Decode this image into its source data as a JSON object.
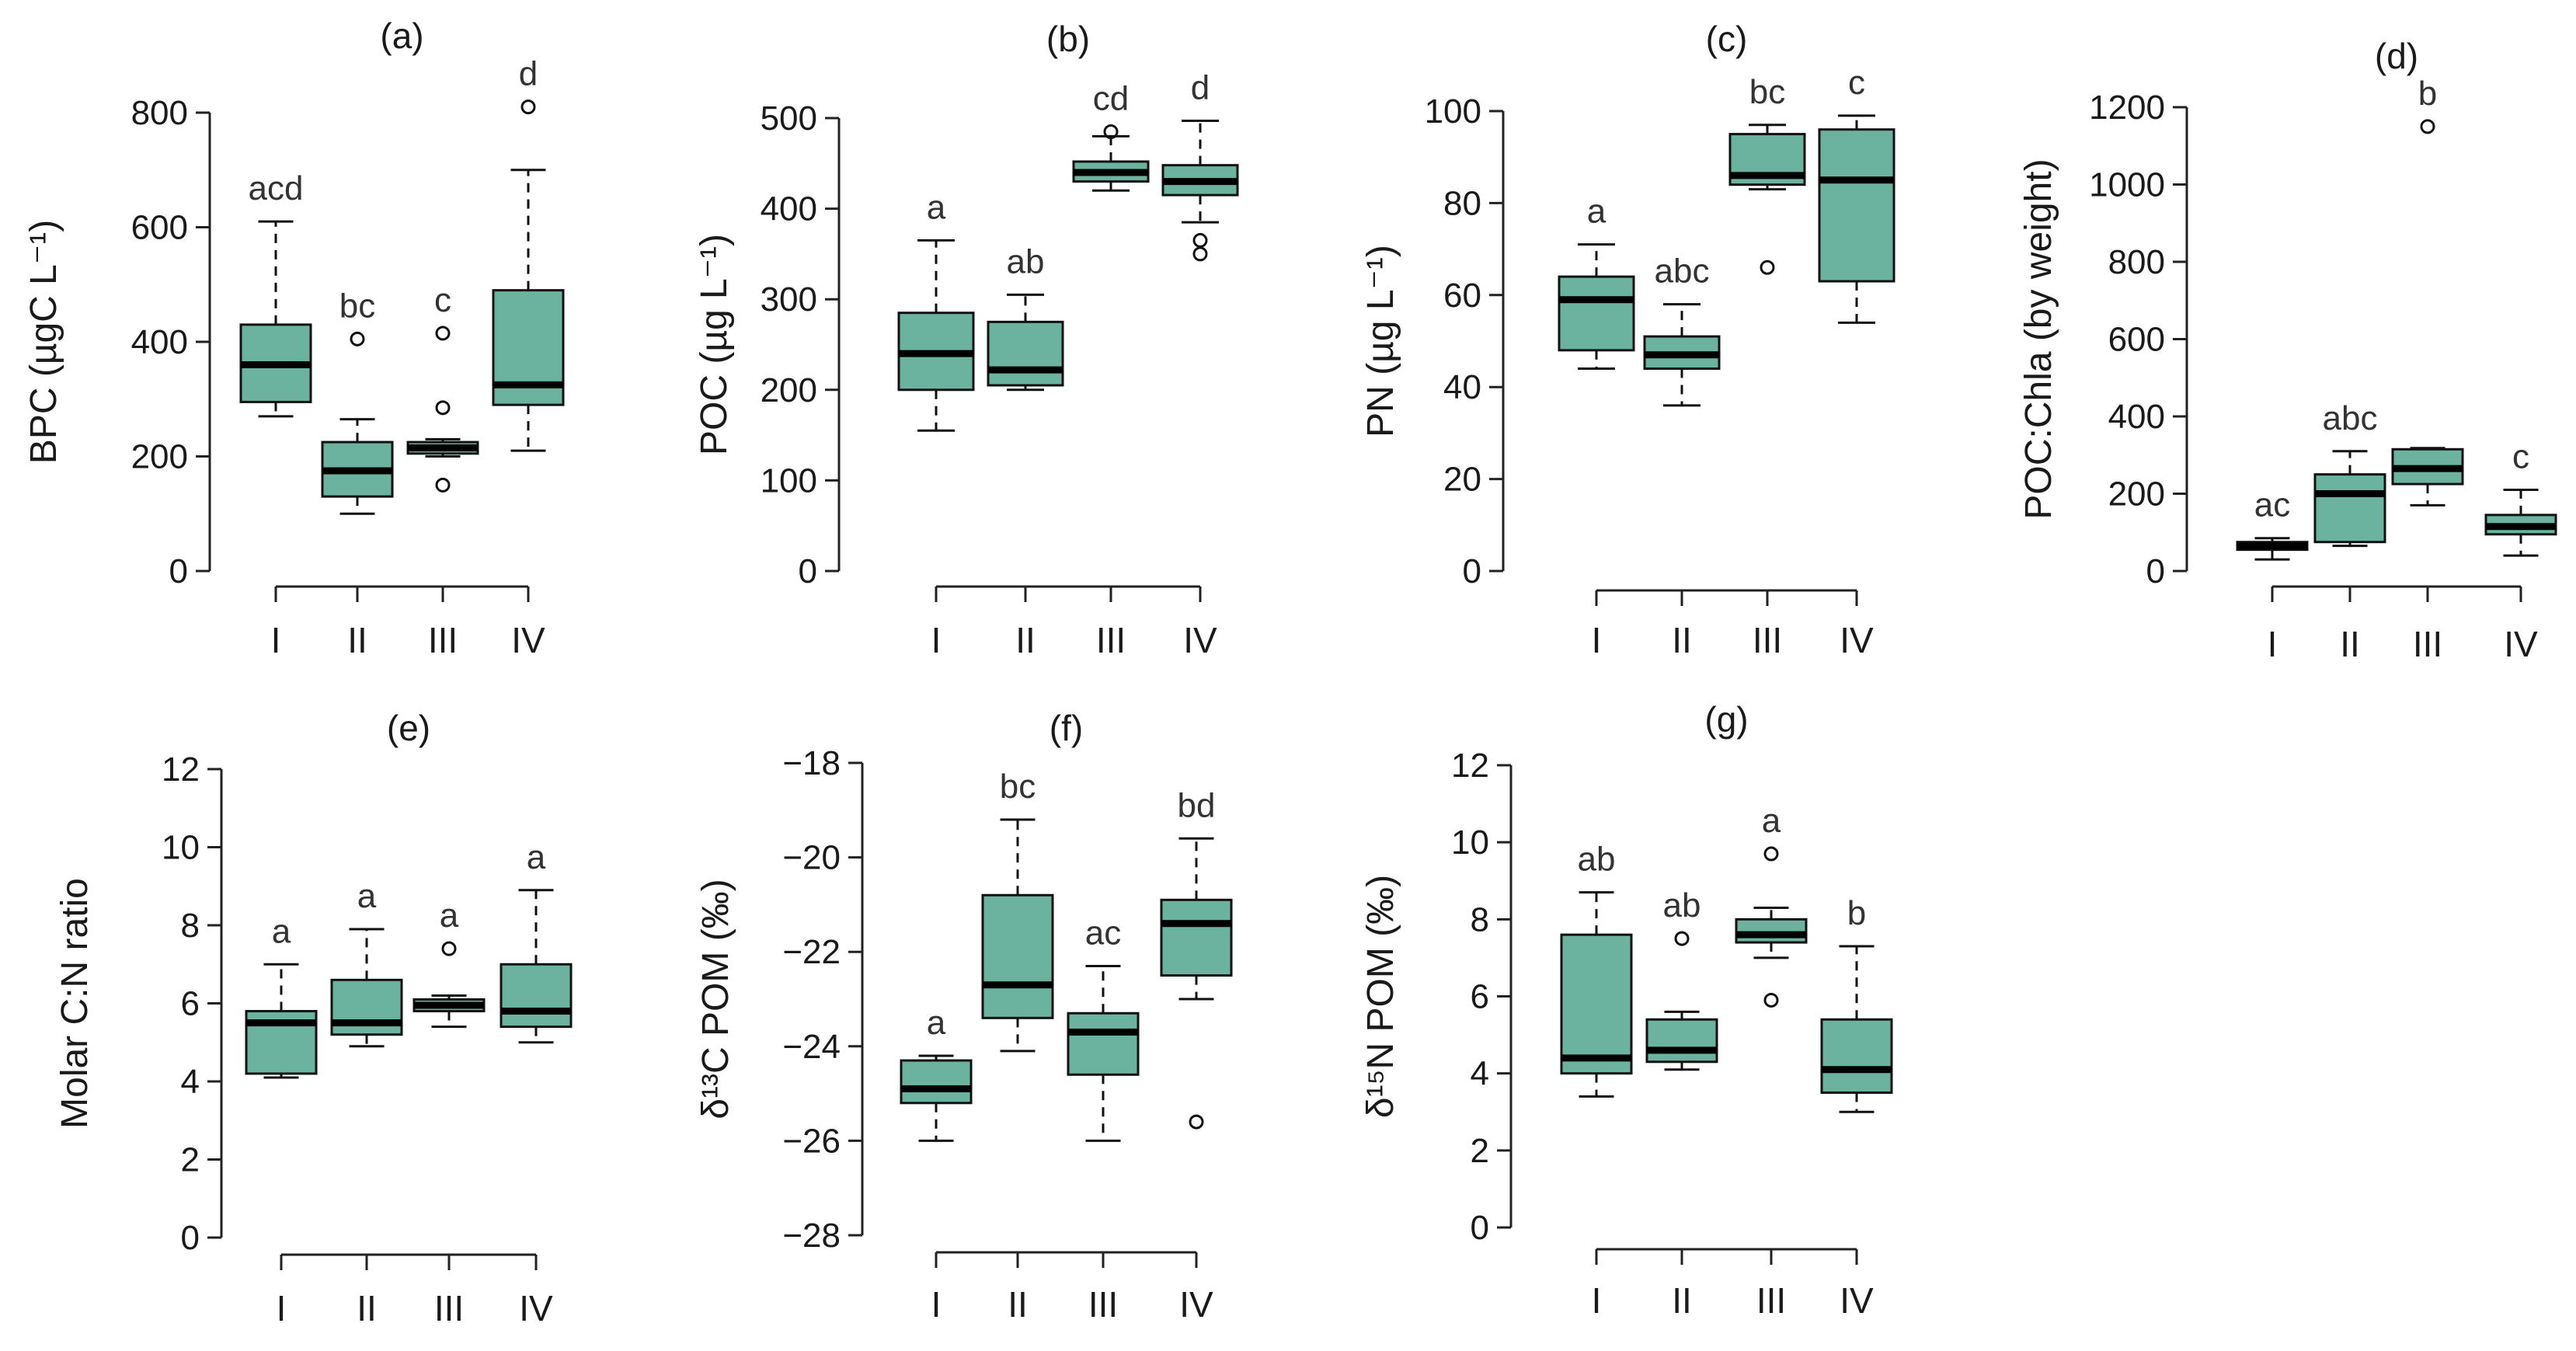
{
  "colors": {
    "box_fill": "#6bb39f",
    "line": "#111111",
    "text": "#1a1a1a"
  },
  "chart_data": [
    {
      "id": "a",
      "type": "boxplot",
      "title": "(a)",
      "ylabel": "BPC (µgC L⁻¹)",
      "ylim": [
        0,
        800
      ],
      "yticks": [
        0,
        200,
        400,
        600,
        800
      ],
      "categories": [
        "I",
        "II",
        "III",
        "IV"
      ],
      "boxes": [
        {
          "min": 270,
          "q1": 295,
          "median": 360,
          "q3": 430,
          "max": 610,
          "outliers": [],
          "letter": "acd"
        },
        {
          "min": 100,
          "q1": 130,
          "median": 175,
          "q3": 225,
          "max": 265,
          "outliers": [
            405
          ],
          "letter": "bc"
        },
        {
          "min": 200,
          "q1": 205,
          "median": 215,
          "q3": 225,
          "max": 230,
          "outliers": [
            150,
            285,
            415
          ],
          "letter": "c"
        },
        {
          "min": 210,
          "q1": 290,
          "median": 325,
          "q3": 490,
          "max": 700,
          "outliers": [
            810
          ],
          "letter": "d"
        }
      ]
    },
    {
      "id": "b",
      "type": "boxplot",
      "title": "(b)",
      "ylabel": "POC  (µg L⁻¹)",
      "ylim": [
        0,
        500
      ],
      "yticks": [
        0,
        100,
        200,
        300,
        400,
        500
      ],
      "categories": [
        "I",
        "II",
        "III",
        "IV"
      ],
      "boxes": [
        {
          "min": 155,
          "q1": 200,
          "median": 240,
          "q3": 285,
          "max": 365,
          "outliers": [],
          "letter": "a"
        },
        {
          "min": 200,
          "q1": 205,
          "median": 222,
          "q3": 275,
          "max": 305,
          "outliers": [],
          "letter": "ab"
        },
        {
          "min": 420,
          "q1": 430,
          "median": 440,
          "q3": 452,
          "max": 480,
          "outliers": [
            485
          ],
          "letter": "cd"
        },
        {
          "min": 385,
          "q1": 415,
          "median": 430,
          "q3": 448,
          "max": 497,
          "outliers": [
            365,
            350
          ],
          "letter": "d"
        }
      ]
    },
    {
      "id": "c",
      "type": "boxplot",
      "title": "(c)",
      "ylabel": "PN (µg L⁻¹)",
      "ylim": [
        0,
        100
      ],
      "yticks": [
        0,
        20,
        40,
        60,
        80,
        100
      ],
      "categories": [
        "I",
        "II",
        "III",
        "IV"
      ],
      "boxes": [
        {
          "min": 44,
          "q1": 48,
          "median": 59,
          "q3": 64,
          "max": 71,
          "outliers": [],
          "letter": "a"
        },
        {
          "min": 36,
          "q1": 44,
          "median": 47,
          "q3": 51,
          "max": 58,
          "outliers": [],
          "letter": "abc"
        },
        {
          "min": 83,
          "q1": 84,
          "median": 86,
          "q3": 95,
          "max": 97,
          "outliers": [
            66
          ],
          "letter": "bc"
        },
        {
          "min": 54,
          "q1": 63,
          "median": 85,
          "q3": 96,
          "max": 99,
          "outliers": [],
          "letter": "c"
        }
      ]
    },
    {
      "id": "d",
      "type": "boxplot",
      "title": "(d)",
      "ylabel": "POC:Chla (by weight)",
      "ylim": [
        0,
        1200
      ],
      "yticks": [
        0,
        200,
        400,
        600,
        800,
        1000,
        1200
      ],
      "categories": [
        "I",
        "II",
        "III",
        "IV"
      ],
      "boxes": [
        {
          "min": 30,
          "q1": 55,
          "median": 65,
          "q3": 75,
          "max": 85,
          "outliers": [],
          "letter": "ac"
        },
        {
          "min": 65,
          "q1": 75,
          "median": 200,
          "q3": 250,
          "max": 310,
          "outliers": [],
          "letter": "abc"
        },
        {
          "min": 170,
          "q1": 225,
          "median": 265,
          "q3": 315,
          "max": 318,
          "outliers": [
            1150
          ],
          "letter": "b"
        },
        {
          "min": 40,
          "q1": 95,
          "median": 115,
          "q3": 145,
          "max": 210,
          "outliers": [],
          "letter": "c"
        }
      ]
    },
    {
      "id": "e",
      "type": "boxplot",
      "title": "(e)",
      "ylabel": "Molar C:N ratio",
      "ylim": [
        0,
        12
      ],
      "yticks": [
        0,
        2,
        4,
        6,
        8,
        10,
        12
      ],
      "categories": [
        "I",
        "II",
        "III",
        "IV"
      ],
      "boxes": [
        {
          "min": 4.1,
          "q1": 4.2,
          "median": 5.5,
          "q3": 5.8,
          "max": 7.0,
          "outliers": [],
          "letter": "a"
        },
        {
          "min": 4.9,
          "q1": 5.2,
          "median": 5.5,
          "q3": 6.6,
          "max": 7.9,
          "outliers": [],
          "letter": "a"
        },
        {
          "min": 5.4,
          "q1": 5.8,
          "median": 5.95,
          "q3": 6.1,
          "max": 6.2,
          "outliers": [
            7.4
          ],
          "letter": "a"
        },
        {
          "min": 5.0,
          "q1": 5.4,
          "median": 5.8,
          "q3": 7.0,
          "max": 8.9,
          "outliers": [],
          "letter": "a"
        }
      ]
    },
    {
      "id": "f",
      "type": "boxplot",
      "title": "(f)",
      "ylabel": "δ¹³C POM (‰)",
      "ylim": [
        -28,
        -18
      ],
      "yticks": [
        -28,
        -26,
        -24,
        -22,
        -20,
        -18
      ],
      "categories": [
        "I",
        "II",
        "III",
        "IV"
      ],
      "boxes": [
        {
          "min": -26.0,
          "q1": -25.2,
          "median": -24.9,
          "q3": -24.3,
          "max": -24.2,
          "outliers": [],
          "letter": "a"
        },
        {
          "min": -24.1,
          "q1": -23.4,
          "median": -22.7,
          "q3": -20.8,
          "max": -19.2,
          "outliers": [],
          "letter": "bc"
        },
        {
          "min": -26.0,
          "q1": -24.6,
          "median": -23.7,
          "q3": -23.3,
          "max": -22.3,
          "outliers": [],
          "letter": "ac"
        },
        {
          "min": -23.0,
          "q1": -22.5,
          "median": -21.4,
          "q3": -20.9,
          "max": -19.6,
          "outliers": [
            -25.6
          ],
          "letter": "bd"
        }
      ]
    },
    {
      "id": "g",
      "type": "boxplot",
      "title": "(g)",
      "ylabel": "δ¹⁵N POM (‰)",
      "ylim": [
        0,
        12
      ],
      "yticks": [
        0,
        2,
        4,
        6,
        8,
        10,
        12
      ],
      "categories": [
        "I",
        "II",
        "III",
        "IV"
      ],
      "boxes": [
        {
          "min": 3.4,
          "q1": 4.0,
          "median": 4.4,
          "q3": 7.6,
          "max": 8.7,
          "outliers": [],
          "letter": "ab"
        },
        {
          "min": 4.1,
          "q1": 4.3,
          "median": 4.6,
          "q3": 5.4,
          "max": 5.6,
          "outliers": [
            7.5
          ],
          "letter": "ab"
        },
        {
          "min": 7.0,
          "q1": 7.4,
          "median": 7.6,
          "q3": 8.0,
          "max": 8.3,
          "outliers": [
            9.7,
            5.9
          ],
          "letter": "a"
        },
        {
          "min": 3.0,
          "q1": 3.5,
          "median": 4.1,
          "q3": 5.4,
          "max": 7.3,
          "outliers": [],
          "letter": "b"
        }
      ]
    }
  ]
}
